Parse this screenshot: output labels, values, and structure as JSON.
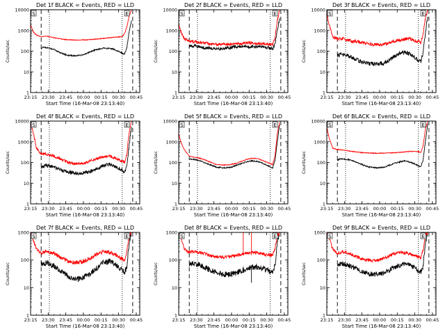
{
  "common": {
    "x_tick_labels": [
      "23:15",
      "23:30",
      "23:45",
      "00:00",
      "00:15",
      "00:30",
      "00:45"
    ],
    "x_label": "Start Time (16-Mar-08 23:13:40)",
    "y_label": "Counts/sec",
    "y_tick_labels": [
      "1",
      "10",
      "100",
      "1000",
      "10000"
    ],
    "marker_S": "S",
    "marker_E": "E",
    "colors": {
      "events": "#000000",
      "lld": "#ff0000"
    }
  },
  "chart_data": [
    {
      "type": "line",
      "title": "Det 1f BLACK = Events, RED = LLD",
      "x_unit": "minutes after 23:15",
      "xlim": [
        0,
        93
      ],
      "ylim": [
        1,
        10000
      ],
      "y_scale": "log",
      "saa_dashed_x": [
        9,
        87
      ],
      "dotted_x": [
        16,
        78,
        95
      ],
      "S_x": 0,
      "E_x": 80,
      "series": [
        {
          "name": "Events",
          "color": "#000000",
          "noise": 0.03,
          "x": [
            9,
            10,
            14,
            20,
            26,
            32,
            38,
            44,
            48,
            54,
            62,
            70,
            76,
            80,
            82,
            84,
            86
          ],
          "y": [
            130,
            150,
            150,
            120,
            80,
            62,
            60,
            65,
            78,
            110,
            140,
            130,
            90,
            70,
            150,
            900,
            3000
          ]
        },
        {
          "name": "LLD",
          "color": "#ff0000",
          "noise": 0.02,
          "x": [
            0,
            2,
            5,
            9,
            14,
            20,
            30,
            40,
            50,
            60,
            70,
            78,
            80,
            82,
            84,
            86
          ],
          "y": [
            2000,
            900,
            600,
            500,
            520,
            440,
            360,
            340,
            360,
            400,
            460,
            500,
            700,
            1500,
            5000,
            10000
          ]
        }
      ]
    },
    {
      "type": "line",
      "title": "Det 2f BLACK = Events, RED = LLD",
      "x_unit": "minutes after 23:15",
      "xlim": [
        0,
        93
      ],
      "ylim": [
        1,
        10000
      ],
      "y_scale": "log",
      "saa_dashed_x": [
        9,
        87
      ],
      "dotted_x": [
        16,
        78,
        95
      ],
      "S_x": 0,
      "E_x": 80,
      "series": [
        {
          "name": "Events",
          "color": "#000000",
          "noise": 0.08,
          "x": [
            9,
            14,
            20,
            28,
            36,
            44,
            50,
            56,
            62,
            70,
            76,
            80,
            82,
            84,
            86
          ],
          "y": [
            170,
            180,
            150,
            140,
            130,
            150,
            170,
            160,
            160,
            170,
            150,
            130,
            200,
            1000,
            4000
          ]
        },
        {
          "name": "LLD",
          "color": "#ff0000",
          "noise": 0.07,
          "x": [
            0,
            2,
            5,
            9,
            14,
            20,
            28,
            36,
            44,
            52,
            60,
            68,
            76,
            80,
            82,
            84,
            86
          ],
          "y": [
            2000,
            800,
            400,
            300,
            280,
            260,
            220,
            210,
            220,
            230,
            250,
            230,
            220,
            200,
            400,
            3000,
            10000
          ]
        }
      ]
    },
    {
      "type": "line",
      "title": "Det 3f BLACK = Events, RED = LLD",
      "x_unit": "minutes after 23:15",
      "xlim": [
        0,
        93
      ],
      "ylim": [
        1,
        10000
      ],
      "y_scale": "log",
      "saa_dashed_x": [
        9,
        87
      ],
      "dotted_x": [
        16,
        78,
        95
      ],
      "S_x": 0,
      "E_x": 80,
      "series": [
        {
          "name": "Events",
          "color": "#000000",
          "noise": 0.1,
          "x": [
            9,
            12,
            18,
            24,
            30,
            36,
            42,
            48,
            54,
            60,
            66,
            72,
            78,
            80,
            82,
            84,
            86
          ],
          "y": [
            60,
            70,
            60,
            40,
            30,
            25,
            24,
            26,
            40,
            70,
            90,
            70,
            35,
            30,
            80,
            800,
            5000
          ]
        },
        {
          "name": "LLD",
          "color": "#ff0000",
          "noise": 0.08,
          "x": [
            0,
            2,
            5,
            9,
            14,
            20,
            30,
            40,
            50,
            60,
            70,
            78,
            80,
            82,
            84,
            86
          ],
          "y": [
            7000,
            2000,
            500,
            400,
            380,
            320,
            260,
            200,
            220,
            330,
            400,
            300,
            250,
            600,
            4000,
            10000
          ]
        }
      ]
    },
    {
      "type": "line",
      "title": "Det 4f BLACK = Events, RED = LLD",
      "x_unit": "minutes after 23:15",
      "xlim": [
        0,
        93
      ],
      "ylim": [
        1,
        10000
      ],
      "y_scale": "log",
      "saa_dashed_x": [
        9,
        87
      ],
      "dotted_x": [
        16,
        78,
        95
      ],
      "S_x": 0,
      "E_x": 80,
      "series": [
        {
          "name": "Events",
          "color": "#000000",
          "noise": 0.09,
          "x": [
            9,
            14,
            20,
            26,
            32,
            38,
            44,
            50,
            56,
            62,
            68,
            74,
            80,
            82,
            84,
            86
          ],
          "y": [
            60,
            70,
            60,
            45,
            35,
            30,
            30,
            35,
            50,
            70,
            80,
            60,
            35,
            70,
            700,
            6000
          ]
        },
        {
          "name": "LLD",
          "color": "#ff0000",
          "noise": 0.07,
          "x": [
            0,
            2,
            5,
            9,
            14,
            20,
            26,
            32,
            38,
            44,
            50,
            56,
            62,
            68,
            74,
            80,
            82,
            84,
            86
          ],
          "y": [
            9000,
            3000,
            500,
            260,
            250,
            200,
            140,
            100,
            90,
            90,
            110,
            150,
            190,
            200,
            150,
            100,
            250,
            3000,
            10000
          ]
        }
      ]
    },
    {
      "type": "line",
      "title": "Det 5f BLACK = Events, RED = LLD",
      "x_unit": "minutes after 23:15",
      "xlim": [
        0,
        93
      ],
      "ylim": [
        1,
        10000
      ],
      "y_scale": "log",
      "saa_dashed_x": [
        9,
        87
      ],
      "dotted_x": [
        16,
        78,
        95
      ],
      "S_x": 0,
      "E_x": 80,
      "series": [
        {
          "name": "Events",
          "color": "#000000",
          "noise": 0.03,
          "x": [
            9,
            14,
            20,
            26,
            32,
            38,
            44,
            50,
            56,
            62,
            68,
            74,
            80,
            82,
            84,
            86
          ],
          "y": [
            150,
            140,
            110,
            80,
            60,
            55,
            58,
            75,
            100,
            120,
            110,
            80,
            55,
            120,
            1000,
            7000
          ]
        },
        {
          "name": "LLD",
          "color": "#ff0000",
          "noise": 0.02,
          "x": [
            0,
            2,
            5,
            9,
            14,
            20,
            26,
            32,
            38,
            44,
            50,
            56,
            62,
            68,
            74,
            80,
            82,
            84,
            86
          ],
          "y": [
            2500,
            900,
            400,
            200,
            180,
            150,
            110,
            80,
            75,
            78,
            95,
            130,
            160,
            150,
            110,
            80,
            200,
            2500,
            9000
          ]
        }
      ]
    },
    {
      "type": "line",
      "title": "Det 6f BLACK = Events, RED = LLD",
      "x_unit": "minutes after 23:15",
      "xlim": [
        0,
        93
      ],
      "ylim": [
        1,
        10000
      ],
      "y_scale": "log",
      "saa_dashed_x": [
        9,
        87
      ],
      "dotted_x": [
        16,
        78,
        95
      ],
      "S_x": 0,
      "E_x": 80,
      "series": [
        {
          "name": "Events",
          "color": "#000000",
          "noise": 0.03,
          "x": [
            9,
            12,
            18,
            24,
            30,
            36,
            42,
            48,
            54,
            60,
            66,
            72,
            78,
            80,
            82,
            84,
            86
          ],
          "y": [
            130,
            150,
            140,
            110,
            80,
            60,
            55,
            58,
            75,
            100,
            120,
            100,
            70,
            60,
            130,
            1000,
            7000
          ]
        },
        {
          "name": "LLD",
          "color": "#ff0000",
          "noise": 0.02,
          "x": [
            0,
            2,
            5,
            9,
            14,
            20,
            30,
            40,
            50,
            60,
            70,
            78,
            80,
            82,
            84,
            86
          ],
          "y": [
            5000,
            1500,
            500,
            420,
            400,
            350,
            300,
            280,
            280,
            300,
            340,
            340,
            300,
            600,
            4000,
            10000
          ]
        }
      ]
    },
    {
      "type": "line",
      "title": "Det 7f BLACK = Events, RED = LLD",
      "x_unit": "minutes after 23:15",
      "xlim": [
        0,
        93
      ],
      "ylim": [
        1,
        1000
      ],
      "y_scale": "log",
      "saa_dashed_x": [
        9,
        87
      ],
      "dotted_x": [
        16,
        78,
        95
      ],
      "S_x": 0,
      "E_x": 80,
      "series": [
        {
          "name": "Events",
          "color": "#000000",
          "noise": 0.1,
          "x": [
            9,
            14,
            20,
            26,
            32,
            38,
            44,
            50,
            56,
            62,
            68,
            74,
            80,
            82,
            84,
            86
          ],
          "y": [
            70,
            80,
            60,
            40,
            25,
            20,
            22,
            30,
            50,
            80,
            90,
            60,
            35,
            60,
            400,
            1000
          ]
        },
        {
          "name": "LLD",
          "color": "#ff0000",
          "noise": 0.07,
          "x": [
            0,
            2,
            5,
            9,
            14,
            20,
            26,
            32,
            38,
            44,
            50,
            56,
            62,
            68,
            74,
            80,
            82,
            84,
            86
          ],
          "y": [
            1000,
            600,
            250,
            180,
            200,
            170,
            120,
            90,
            80,
            85,
            110,
            160,
            200,
            190,
            140,
            100,
            200,
            800,
            1000
          ]
        }
      ]
    },
    {
      "type": "line",
      "title": "Det 8f BLACK = Events, RED = LLD",
      "x_unit": "minutes after 23:15",
      "xlim": [
        0,
        93
      ],
      "ylim": [
        1,
        1000
      ],
      "y_scale": "log",
      "saa_dashed_x": [
        9,
        87
      ],
      "dotted_x": [
        16,
        78,
        95
      ],
      "S_x": 0,
      "E_x": 80,
      "series": [
        {
          "name": "Events",
          "color": "#000000",
          "noise": 0.1,
          "x": [
            9,
            14,
            20,
            26,
            32,
            38,
            44,
            50,
            56,
            62,
            68,
            74,
            80,
            82,
            84,
            86
          ],
          "y": [
            70,
            75,
            60,
            45,
            35,
            30,
            30,
            35,
            45,
            55,
            55,
            45,
            35,
            60,
            400,
            1000
          ]
        },
        {
          "name": "LLD",
          "color": "#ff0000",
          "noise": 0.06,
          "x": [
            0,
            2,
            5,
            9,
            14,
            20,
            26,
            32,
            38,
            44,
            50,
            56,
            62,
            68,
            74,
            80,
            82,
            84,
            86
          ],
          "y": [
            1000,
            600,
            250,
            190,
            200,
            180,
            150,
            130,
            130,
            135,
            150,
            170,
            190,
            180,
            160,
            150,
            250,
            800,
            1000
          ]
        }
      ],
      "spikes": [
        {
          "x": 55,
          "ymin": 150,
          "ymax": 1000,
          "color": "#ff0000"
        },
        {
          "x": 62,
          "ymin": 150,
          "ymax": 1000,
          "color": "#ff0000"
        },
        {
          "x": 62,
          "ymin": 15,
          "ymax": 60,
          "color": "#000000"
        }
      ]
    },
    {
      "type": "line",
      "title": "Det 9f BLACK = Events, RED = LLD",
      "x_unit": "minutes after 23:15",
      "xlim": [
        0,
        93
      ],
      "ylim": [
        1,
        1000
      ],
      "y_scale": "log",
      "saa_dashed_x": [
        9,
        87
      ],
      "dotted_x": [
        16,
        78,
        95
      ],
      "S_x": 0,
      "E_x": 80,
      "series": [
        {
          "name": "Events",
          "color": "#000000",
          "noise": 0.09,
          "x": [
            9,
            14,
            20,
            26,
            32,
            38,
            44,
            50,
            56,
            62,
            68,
            74,
            80,
            82,
            84,
            86
          ],
          "y": [
            70,
            75,
            60,
            45,
            35,
            30,
            30,
            35,
            50,
            65,
            70,
            55,
            35,
            60,
            400,
            1000
          ]
        },
        {
          "name": "LLD",
          "color": "#ff0000",
          "noise": 0.06,
          "x": [
            0,
            2,
            5,
            9,
            14,
            20,
            26,
            32,
            38,
            44,
            50,
            56,
            62,
            68,
            74,
            80,
            82,
            84,
            86
          ],
          "y": [
            1000,
            600,
            250,
            180,
            200,
            170,
            130,
            100,
            95,
            100,
            120,
            160,
            190,
            180,
            150,
            120,
            220,
            800,
            1000
          ]
        }
      ]
    }
  ]
}
